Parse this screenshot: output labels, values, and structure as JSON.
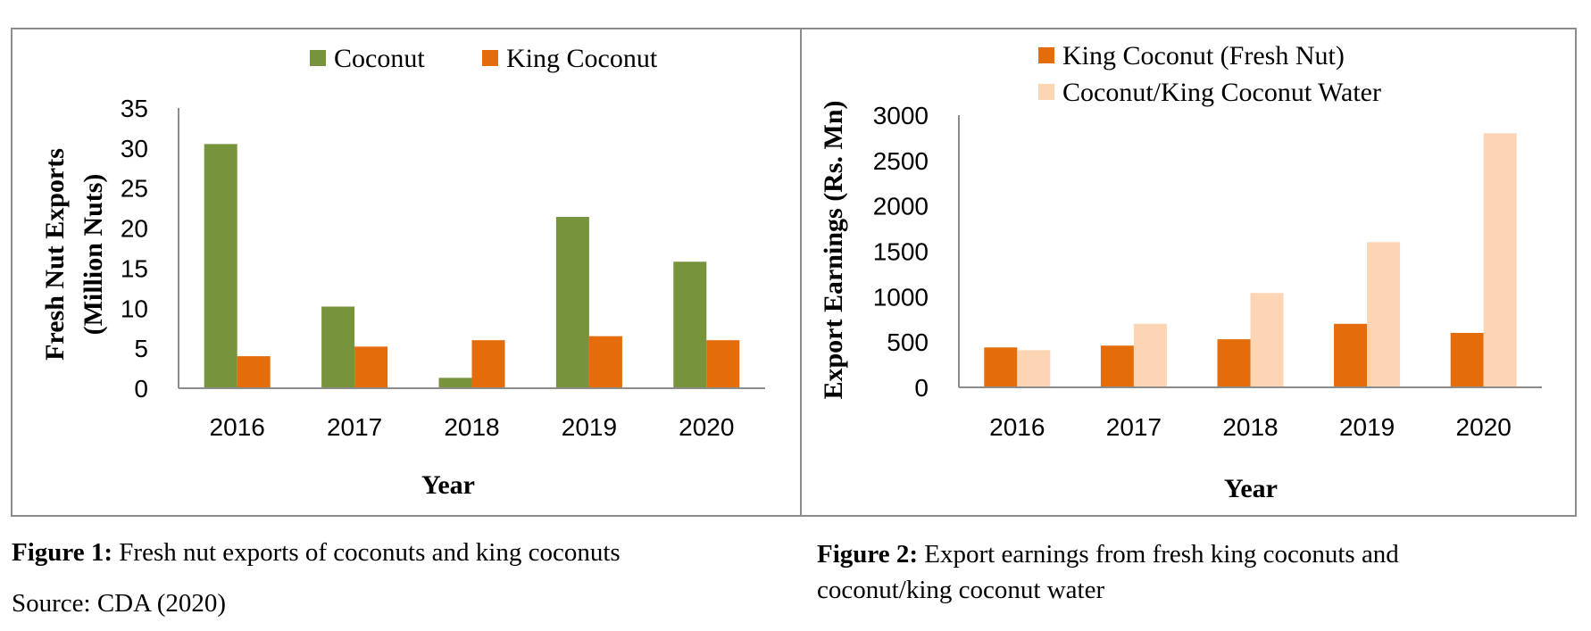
{
  "charts": [
    {
      "type": "bar",
      "categories": [
        "2016",
        "2017",
        "2018",
        "2019",
        "2020"
      ],
      "series": [
        {
          "name": "Coconut",
          "color": "#77933c",
          "values": [
            30.5,
            10.2,
            1.3,
            21.4,
            15.8
          ]
        },
        {
          "name": "King Coconut",
          "color": "#e46c0a",
          "values": [
            4.0,
            5.2,
            6.0,
            6.5,
            6.0
          ]
        }
      ],
      "yticks": [
        0,
        5,
        10,
        15,
        20,
        25,
        30,
        35
      ],
      "ylim": [
        0,
        35
      ],
      "ylabel_lines": [
        "Fresh Nut Exports",
        "(Million Nuts)"
      ],
      "xlabel": "Year",
      "legend": "top"
    },
    {
      "type": "bar",
      "categories": [
        "2016",
        "2017",
        "2018",
        "2019",
        "2020"
      ],
      "series": [
        {
          "name": "King Coconut (Fresh Nut)",
          "color": "#e46c0a",
          "values": [
            440,
            460,
            530,
            700,
            600
          ]
        },
        {
          "name": "Coconut/King Coconut Water",
          "color": "#fcd5b5",
          "values": [
            410,
            700,
            1040,
            1600,
            2800
          ]
        }
      ],
      "yticks": [
        0,
        500,
        1000,
        1500,
        2000,
        2500,
        3000
      ],
      "ylim": [
        0,
        3000
      ],
      "ylabel_lines": [
        "Export Earnings (Rs. Mn)"
      ],
      "xlabel": "Year",
      "legend": "top"
    }
  ],
  "captions": {
    "fig1_label": "Figure 1:",
    "fig1_text": " Fresh nut exports of coconuts and king coconuts",
    "source": "Source: CDA (2020)",
    "fig2_label": "Figure 2:",
    "fig2_text_line1": " Export earnings from fresh king coconuts and",
    "fig2_text_line2": "coconut/king coconut water"
  }
}
